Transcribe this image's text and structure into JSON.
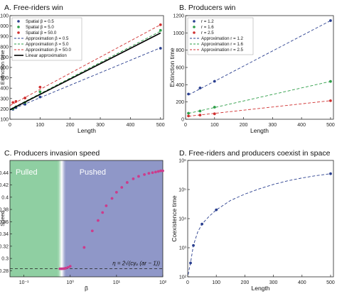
{
  "chart_data": [
    {
      "type": "scatter",
      "panel_title": "A. Free-riders win",
      "xlabel": "Length",
      "ylabel": "Extinction time",
      "xlim": [
        0,
        510
      ],
      "ylim": [
        100,
        1100
      ],
      "xticks": [
        "0",
        "100",
        "200",
        "300",
        "400",
        "500"
      ],
      "yticks": [
        "100",
        "200",
        "300",
        "400",
        "500",
        "600",
        "700",
        "800",
        "900",
        "1000",
        "1100"
      ],
      "grid": false,
      "legend_position": "top-left",
      "series": [
        {
          "name": "Spatial β = 0.5",
          "kind": "points",
          "color": "#2a3f8f",
          "x": [
            10,
            20,
            50,
            100,
            500
          ],
          "y": [
            196,
            212,
            245,
            315,
            785
          ]
        },
        {
          "name": "Spatial β = 5.0",
          "kind": "points",
          "color": "#2e9e48",
          "x": [
            10,
            20,
            50,
            100,
            500
          ],
          "y": [
            201,
            220,
            262,
            365,
            958
          ]
        },
        {
          "name": "Spatial β = 50.0",
          "kind": "points",
          "color": "#d03030",
          "x": [
            10,
            20,
            50,
            100,
            500
          ],
          "y": [
            262,
            272,
            305,
            410,
            1012
          ]
        },
        {
          "name": "Approximation β = 0.5",
          "kind": "dashed",
          "color": "#2a3f8f",
          "x": [
            0,
            500
          ],
          "y": [
            188,
            790
          ]
        },
        {
          "name": "Approximation β = 5.0",
          "kind": "dashed",
          "color": "#2e9e48",
          "x": [
            0,
            500
          ],
          "y": [
            196,
            950
          ]
        },
        {
          "name": "Approximation β = 50.0",
          "kind": "dashed",
          "color": "#d03030",
          "x": [
            0,
            500
          ],
          "y": [
            232,
            1012
          ]
        },
        {
          "name": "Linear approximation",
          "kind": "solid",
          "color": "#000000",
          "x": [
            0,
            500
          ],
          "y": [
            192,
            932
          ]
        }
      ]
    },
    {
      "type": "scatter",
      "panel_title": "B. Producers win",
      "xlabel": "Length",
      "ylabel": "Extinction time",
      "xlim": [
        0,
        510
      ],
      "ylim": [
        0,
        1200
      ],
      "xticks": [
        "0",
        "100",
        "200",
        "300",
        "400",
        "500"
      ],
      "yticks": [
        "0",
        "200",
        "400",
        "600",
        "800",
        "1000",
        "1200"
      ],
      "grid": false,
      "legend_position": "top-left",
      "series": [
        {
          "name": "r = 1.2",
          "kind": "points",
          "color": "#2a3f8f",
          "x": [
            10,
            50,
            100,
            500
          ],
          "y": [
            292,
            362,
            440,
            1142
          ]
        },
        {
          "name": "r = 1.6",
          "kind": "points",
          "color": "#2e9e48",
          "x": [
            10,
            50,
            100,
            500
          ],
          "y": [
            70,
            95,
            140,
            438
          ]
        },
        {
          "name": "r = 2.5",
          "kind": "points",
          "color": "#d03030",
          "x": [
            10,
            50,
            100,
            500
          ],
          "y": [
            38,
            48,
            63,
            215
          ]
        },
        {
          "name": "Approximation r = 1.2",
          "kind": "dashed",
          "color": "#2a3f8f",
          "x": [
            10,
            500
          ],
          "y": [
            282,
            1142
          ]
        },
        {
          "name": "Approximation r = 1.6",
          "kind": "dashed",
          "color": "#2e9e48",
          "x": [
            10,
            500
          ],
          "y": [
            68,
            438
          ]
        },
        {
          "name": "Approximation r = 2.5",
          "kind": "dashed",
          "color": "#d03030",
          "x": [
            10,
            500
          ],
          "y": [
            35,
            215
          ]
        }
      ]
    },
    {
      "type": "scatter",
      "panel_title": "C. Producers invasion speed",
      "xlabel": "β",
      "ylabel": "Speed",
      "xscale": "log",
      "xlim": [
        0.05,
        100
      ],
      "ylim": [
        0.27,
        0.46
      ],
      "xticks": [
        "10⁻¹",
        "10⁰",
        "10¹",
        "10²"
      ],
      "yticks": [
        "0.28",
        "0.3",
        "0.32",
        "0.34",
        "0.36",
        "0.38",
        "0.4",
        "0.42",
        "0.44"
      ],
      "grid": false,
      "regions": [
        {
          "label": "Pulled",
          "color": "#8fcfa2",
          "x_from": 0.05,
          "x_to": 0.55
        },
        {
          "label": "Pushed",
          "color": "#8f97c8",
          "x_from": 0.78,
          "x_to": 100
        }
      ],
      "annotation": "η = 2√(cγᵤ (ar − 1))",
      "threshold": 0.2832,
      "series": [
        {
          "name": "",
          "kind": "points",
          "color": "#cc3c8c",
          "x": [
            0.6,
            0.65,
            0.7,
            0.75,
            0.8,
            0.9,
            1.0,
            2.0,
            3.0,
            4.0,
            5.0,
            6.0,
            8.0,
            10.0,
            13.0,
            17.0,
            23.0,
            30.0,
            40.0,
            50.0,
            60.0,
            70.0,
            80.0,
            90.0,
            100.0
          ],
          "y": [
            0.2832,
            0.2832,
            0.2833,
            0.2835,
            0.2841,
            0.2855,
            0.2872,
            0.318,
            0.345,
            0.362,
            0.375,
            0.386,
            0.398,
            0.408,
            0.416,
            0.424,
            0.43,
            0.434,
            0.437,
            0.439,
            0.44,
            0.441,
            0.442,
            0.443,
            0.443
          ]
        }
      ]
    },
    {
      "type": "line",
      "panel_title": "D. Free-riders and producers coexist in space",
      "xlabel": "Length",
      "ylabel": "Coexistence time",
      "yscale": "log",
      "xlim": [
        0,
        510
      ],
      "ylim": [
        100,
        1000000
      ],
      "xticks": [
        "0",
        "100",
        "200",
        "300",
        "400",
        "500"
      ],
      "yticks": [
        "10²",
        "10³",
        "10⁴",
        "10⁵",
        "10⁶"
      ],
      "grid": false,
      "series": [
        {
          "name": "",
          "kind": "points",
          "color": "#2a3f8f",
          "x": [
            10,
            20,
            50,
            100,
            500
          ],
          "y": [
            300,
            1200,
            6500,
            20000,
            350000
          ]
        },
        {
          "name": "",
          "kind": "dashed",
          "color": "#2a3f8f",
          "x": [
            2,
            5,
            10,
            20,
            35,
            50,
            75,
            100,
            150,
            200,
            250,
            300,
            350,
            400,
            450,
            500
          ],
          "y": [
            120,
            180,
            300,
            1200,
            3500,
            6500,
            12000,
            20000,
            42000,
            70000,
            105000,
            150000,
            200000,
            250000,
            300000,
            350000
          ]
        }
      ]
    }
  ]
}
